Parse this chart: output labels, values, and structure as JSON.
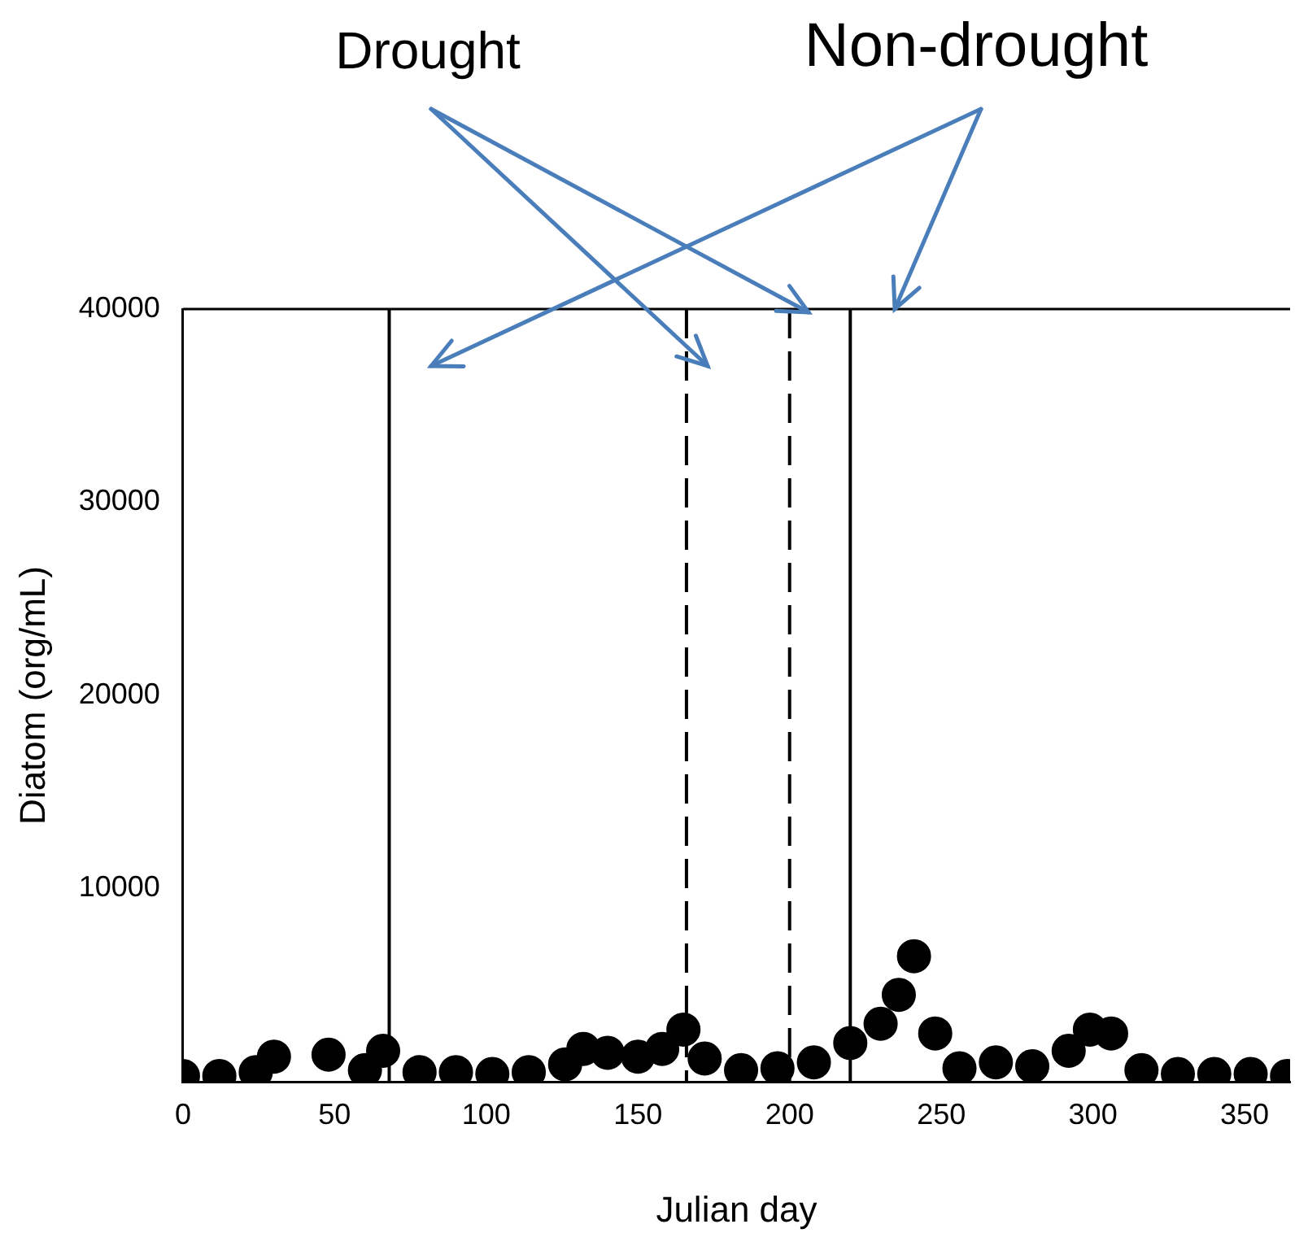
{
  "chart_data": {
    "type": "scatter",
    "xlabel": "Julian day",
    "ylabel": "Diatom (org/mL)",
    "annotations": [
      "Drought",
      "Non-drought"
    ],
    "x": [
      0,
      12,
      24,
      30,
      48,
      60,
      66,
      78,
      90,
      102,
      114,
      126,
      132,
      140,
      150,
      158,
      165,
      172,
      184,
      196,
      208,
      220,
      230,
      236,
      241,
      248,
      256,
      268,
      280,
      292,
      299,
      306,
      316,
      328,
      340,
      352,
      364
    ],
    "values": [
      300,
      300,
      500,
      1300,
      1400,
      600,
      1600,
      500,
      500,
      400,
      500,
      900,
      1700,
      1500,
      1300,
      1700,
      2700,
      1200,
      600,
      700,
      1000,
      2000,
      3000,
      4500,
      6500,
      2500,
      700,
      1000,
      800,
      1600,
      2700,
      2500,
      600,
      400,
      400,
      400,
      300
    ],
    "color": "#000000",
    "marker": "circle",
    "xlim": [
      0,
      365
    ],
    "xticks": [
      0,
      50,
      100,
      150,
      200,
      250,
      300,
      350
    ],
    "ylim": [
      0,
      40000
    ],
    "yticks": [
      {
        "value": 0,
        "label": null
      },
      10000,
      20000,
      30000,
      40000
    ],
    "ref_lines": [
      {
        "axis": "x",
        "value": 68,
        "color": "#000000",
        "line_style": "solid"
      },
      {
        "axis": "x",
        "value": 166,
        "color": "#000000",
        "line_style": "dashed"
      },
      {
        "axis": "x",
        "value": 200,
        "color": "#000000",
        "line_style": "dashed"
      },
      {
        "axis": "x",
        "value": 220,
        "color": "#000000",
        "line_style": "solid"
      }
    ],
    "grid": false,
    "legend": false
  }
}
